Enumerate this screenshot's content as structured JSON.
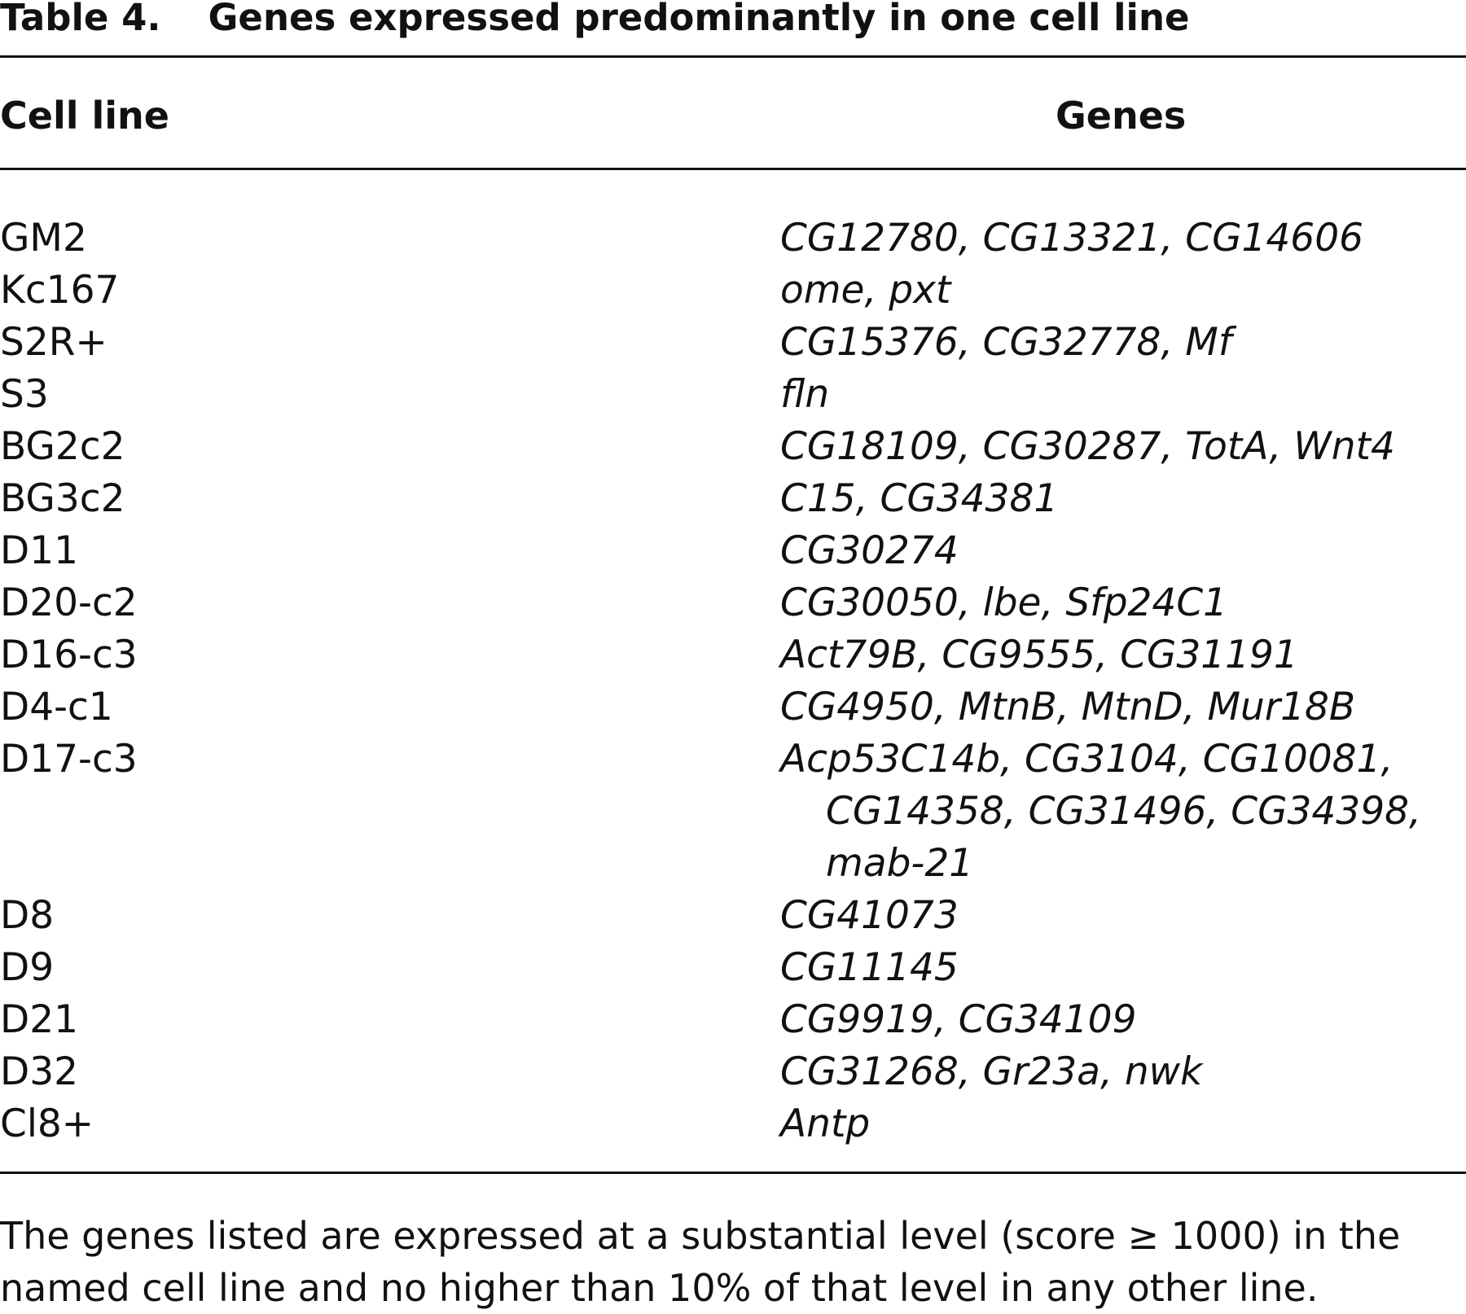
{
  "table": {
    "label": "Table 4.",
    "title": "Genes expressed predominantly in one cell line",
    "headers": {
      "cell_line": "Cell line",
      "genes": "Genes"
    },
    "rows": [
      {
        "cell_line": "GM2",
        "genes": [
          "CG12780, CG13321, CG14606"
        ]
      },
      {
        "cell_line": "Kc167",
        "genes": [
          "ome, pxt"
        ]
      },
      {
        "cell_line": "S2R+",
        "genes": [
          "CG15376, CG32778, Mf"
        ]
      },
      {
        "cell_line": "S3",
        "genes": [
          "fln"
        ]
      },
      {
        "cell_line": "BG2c2",
        "genes": [
          "CG18109, CG30287, TotA, Wnt4"
        ]
      },
      {
        "cell_line": "BG3c2",
        "genes": [
          "C15, CG34381"
        ]
      },
      {
        "cell_line": "D11",
        "genes": [
          "CG30274"
        ]
      },
      {
        "cell_line": "D20-c2",
        "genes": [
          "CG30050, lbe, Sfp24C1"
        ]
      },
      {
        "cell_line": "D16-c3",
        "genes": [
          "Act79B, CG9555, CG31191"
        ]
      },
      {
        "cell_line": "D4-c1",
        "genes": [
          "CG4950, MtnB, MtnD, Mur18B"
        ]
      },
      {
        "cell_line": "D17-c3",
        "genes": [
          "Acp53C14b, CG3104, CG10081,",
          "CG14358, CG31496, CG34398,",
          "mab-21"
        ]
      },
      {
        "cell_line": "D8",
        "genes": [
          "CG41073"
        ]
      },
      {
        "cell_line": "D9",
        "genes": [
          "CG11145"
        ]
      },
      {
        "cell_line": "D21",
        "genes": [
          "CG9919, CG34109"
        ]
      },
      {
        "cell_line": "D32",
        "genes": [
          "CG31268, Gr23a, nwk"
        ]
      },
      {
        "cell_line": "Cl8+",
        "genes": [
          "Antp"
        ]
      }
    ],
    "footnote": [
      "The genes listed are expressed at a substantial level (score ≥ 1000) in the",
      "named cell line and no higher than 10% of that level in any other line."
    ]
  }
}
